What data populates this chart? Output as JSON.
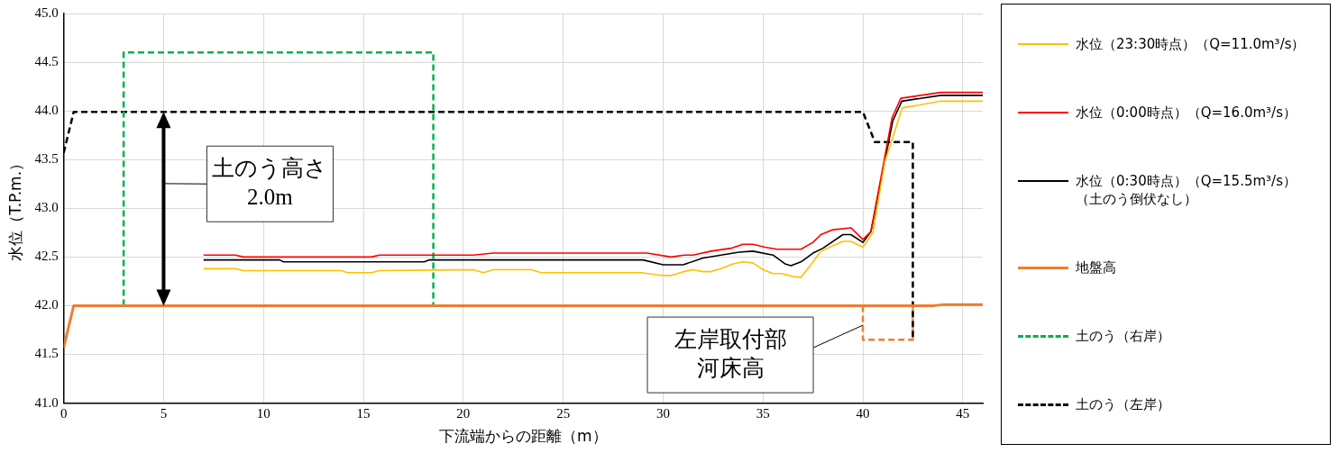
{
  "chart_data": {
    "type": "line",
    "xlabel": "下流端からの距離（m）",
    "ylabel": "水位（T.P.m.）",
    "xlim": [
      0,
      46
    ],
    "xticks": [
      0,
      5,
      10,
      15,
      20,
      25,
      30,
      35,
      40,
      45
    ],
    "ylim": [
      41,
      45
    ],
    "yticks": [
      {
        "value": 41,
        "label": "41.0"
      },
      {
        "value": 41.5,
        "label": "41.5"
      },
      {
        "value": 42,
        "label": "42.0"
      },
      {
        "value": 42.5,
        "label": "42.5"
      },
      {
        "value": 43,
        "label": "43.0"
      },
      {
        "value": 43.5,
        "label": "43.5"
      },
      {
        "value": 44,
        "label": "44.0"
      },
      {
        "value": 44.5,
        "label": "44.5"
      },
      {
        "value": 45,
        "label": "45.0"
      }
    ],
    "grid": true,
    "legend": "right",
    "marker": "none",
    "series": [
      {
        "name": "水位（23:30時点）（Q=11.0m³/s）",
        "color": "#ffc000",
        "line_style": "solid",
        "x": [
          7,
          8.6,
          9,
          13.9,
          14.2,
          15.4,
          15.8,
          20.5,
          21,
          21.5,
          23.4,
          23.9,
          28.9,
          30,
          30.4,
          31.05,
          31.5,
          32,
          32.4,
          32.9,
          33.5,
          34,
          34.5,
          35,
          35.5,
          35.9,
          36.5,
          36.9,
          37.4,
          37.9,
          39,
          39.4,
          40,
          40.5,
          41.1,
          41.97,
          43.9,
          46
        ],
        "values": [
          42.38,
          42.38,
          42.36,
          42.36,
          42.34,
          42.34,
          42.36,
          42.37,
          42.34,
          42.37,
          42.37,
          42.34,
          42.34,
          42.31,
          42.31,
          42.35,
          42.37,
          42.35,
          42.35,
          42.38,
          42.43,
          42.45,
          42.44,
          42.37,
          42.33,
          42.33,
          42.3,
          42.29,
          42.42,
          42.56,
          42.66,
          42.66,
          42.6,
          42.75,
          43.48,
          44.03,
          44.1,
          44.1
        ]
      },
      {
        "name": "水位（0:00時点）（Q=16.0m³/s）",
        "color": "#ff0000",
        "line_style": "solid",
        "x": [
          7,
          8.6,
          9,
          15.4,
          15.8,
          20.5,
          21.5,
          29.2,
          30.4,
          31.05,
          31.5,
          32.4,
          33.4,
          34,
          34.5,
          35.1,
          35.7,
          36.9,
          37.5,
          37.9,
          38.5,
          39.4,
          40,
          40.4,
          41.46,
          41.9,
          43.9,
          46
        ],
        "values": [
          42.52,
          42.52,
          42.5,
          42.5,
          42.52,
          42.52,
          42.54,
          42.54,
          42.5,
          42.52,
          42.52,
          42.56,
          42.59,
          42.63,
          42.63,
          42.6,
          42.58,
          42.58,
          42.65,
          42.73,
          42.78,
          42.8,
          42.68,
          42.76,
          43.93,
          44.13,
          44.19,
          44.19
        ]
      },
      {
        "name": "水位（0:30時点）（Q=15.5m³/s）（土のう倒伏なし）",
        "color": "#000000",
        "line_style": "solid",
        "x": [
          7,
          10.8,
          11,
          18.05,
          18.3,
          29,
          30,
          31,
          32,
          32.9,
          33.8,
          34.5,
          35.5,
          36.1,
          36.4,
          36.9,
          37.5,
          38,
          39,
          39.4,
          40,
          40.4,
          41.5,
          41.95,
          43.9,
          46
        ],
        "values": [
          42.47,
          42.47,
          42.45,
          42.45,
          42.47,
          42.47,
          42.42,
          42.42,
          42.49,
          42.52,
          42.55,
          42.56,
          42.52,
          42.43,
          42.41,
          42.45,
          42.54,
          42.59,
          42.73,
          42.73,
          42.65,
          42.76,
          43.9,
          44.1,
          44.16,
          44.16
        ]
      },
      {
        "name": "地盤高",
        "color": "#ed7d31",
        "line_style": "solid",
        "x": [
          0,
          0.5,
          43.5,
          44,
          46
        ],
        "values": [
          41.57,
          42,
          42,
          42.01,
          42.01
        ]
      },
      {
        "name": "土のう（右岸）",
        "color": "#00b050",
        "line_style": "dashed",
        "x": [
          3,
          3,
          18.5,
          18.5
        ],
        "values": [
          42,
          44.6,
          44.6,
          42
        ]
      },
      {
        "name": "土のう（左岸）",
        "color": "#000000",
        "line_style": "dashed",
        "x": [
          0,
          0.5,
          40,
          40.6,
          42.5,
          42.5
        ],
        "values": [
          43.57,
          43.99,
          43.99,
          43.68,
          43.68,
          41.65
        ]
      },
      {
        "color": "#ed7d31",
        "line_style": "dashed",
        "x": [
          40,
          40,
          42.5,
          42.5
        ],
        "values": [
          42,
          41.65,
          41.65,
          42
        ]
      }
    ],
    "annotations": [
      {
        "text": "土のう高さ2.0m",
        "x": 5,
        "y": 43.99
      },
      {
        "text": "左岸取付部河床高",
        "x": 40,
        "y": 41.8
      }
    ]
  }
}
